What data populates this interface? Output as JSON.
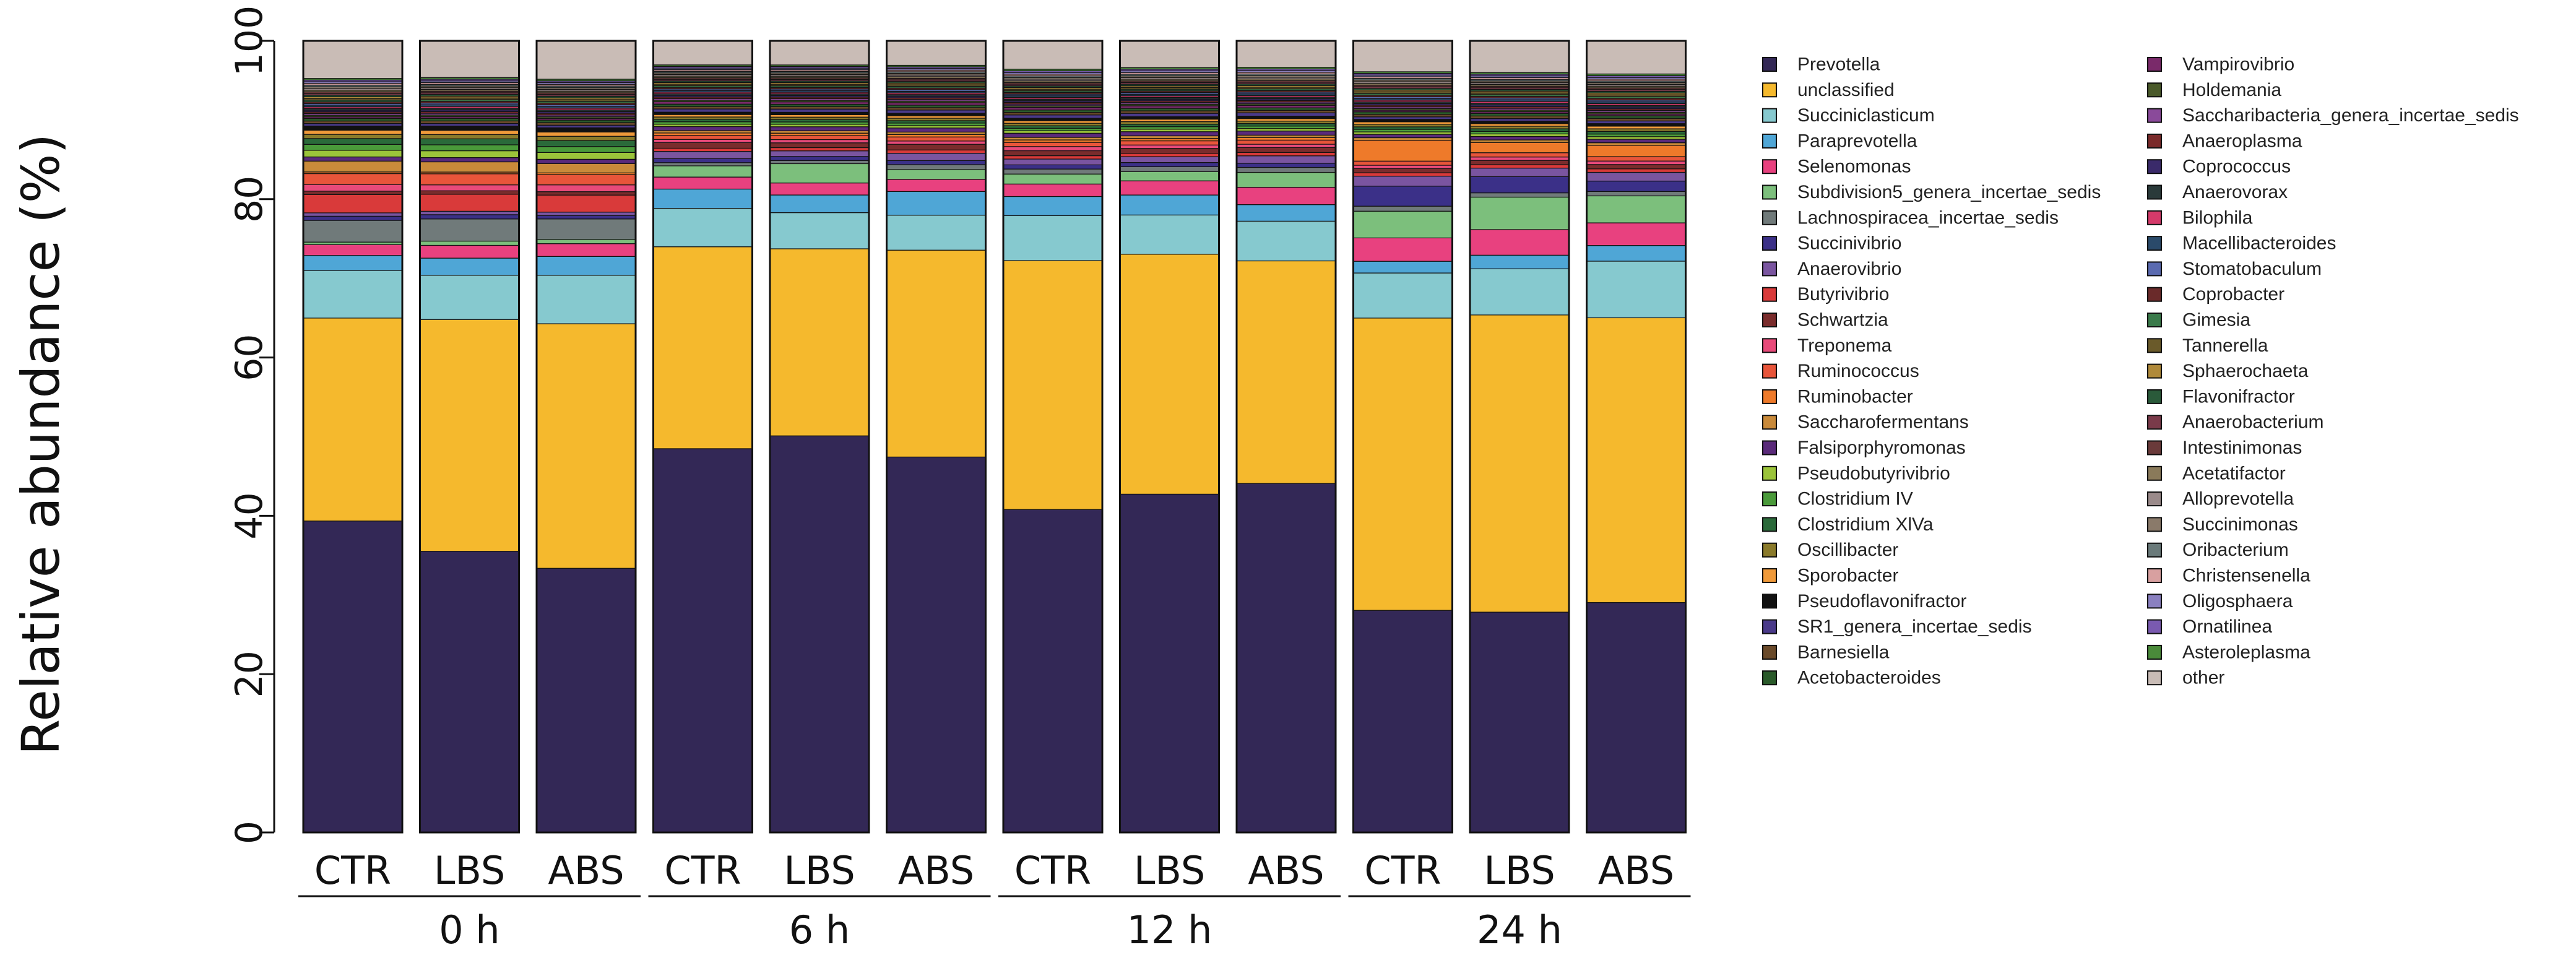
{
  "chart_data": {
    "type": "bar",
    "stacked": true,
    "title": "",
    "xlabel": "",
    "ylabel": "Relative abundance (%)",
    "ylim": [
      0,
      100
    ],
    "yticks": [
      "0",
      "20",
      "40",
      "60",
      "80",
      "100"
    ],
    "categories": [
      "CTR",
      "LBS",
      "ABS",
      "CTR",
      "LBS",
      "ABS",
      "CTR",
      "LBS",
      "ABS",
      "CTR",
      "LBS",
      "ABS"
    ],
    "groups": [
      {
        "label": "0 h",
        "span": [
          0,
          2
        ]
      },
      {
        "label": "6 h",
        "span": [
          3,
          5
        ]
      },
      {
        "label": "12 h",
        "span": [
          6,
          8
        ]
      },
      {
        "label": "24 h",
        "span": [
          9,
          11
        ]
      }
    ],
    "legend_position": "right",
    "series": [
      {
        "name": "Prevotella",
        "color": "#332856",
        "values": [
          37.3,
          33.0,
          31.0,
          47.9,
          49.4,
          46.1,
          38.8,
          40.6,
          42.2,
          26.6,
          25.8,
          26.4
        ]
      },
      {
        "name": "unclassified",
        "color": "#f5b92d",
        "values": [
          24.3,
          27.2,
          28.7,
          25.2,
          23.3,
          25.4,
          29.9,
          28.8,
          26.9,
          35.0,
          34.8,
          32.7
        ]
      },
      {
        "name": "Succiniclasticum",
        "color": "#86c9cf",
        "values": [
          5.7,
          5.2,
          5.7,
          4.8,
          4.5,
          4.3,
          5.4,
          4.7,
          4.8,
          5.4,
          5.4,
          6.5
        ]
      },
      {
        "name": "Paraprevotella",
        "color": "#4fa6d6",
        "values": [
          1.8,
          2.0,
          2.2,
          2.4,
          2.2,
          2.9,
          2.3,
          2.4,
          2.0,
          1.4,
          1.6,
          1.8
        ]
      },
      {
        "name": "Selenomonas",
        "color": "#e8417f",
        "values": [
          1.3,
          1.5,
          1.5,
          1.5,
          1.5,
          1.5,
          1.5,
          1.7,
          2.1,
          2.8,
          3.0,
          2.6
        ]
      },
      {
        "name": "Subdivision5_genera_incertae_sedis",
        "color": "#7cbf7c",
        "values": [
          0.3,
          0.5,
          0.5,
          1.4,
          2.4,
          1.2,
          1.2,
          1.1,
          1.8,
          3.2,
          3.8,
          3.1
        ]
      },
      {
        "name": "Lachnospiracea_incertae_sedis",
        "color": "#707a7a",
        "values": [
          2.6,
          2.6,
          2.4,
          0.4,
          0.4,
          0.6,
          0.6,
          0.6,
          0.6,
          0.6,
          0.5,
          0.5
        ]
      },
      {
        "name": "Succinivibrio",
        "color": "#3b3088",
        "values": [
          0.5,
          0.5,
          0.4,
          0.5,
          0.5,
          0.5,
          0.5,
          0.5,
          0.5,
          2.4,
          1.9,
          1.2
        ]
      },
      {
        "name": "Anaerovibrio",
        "color": "#7a55a0",
        "values": [
          0.4,
          0.4,
          0.4,
          0.9,
          0.7,
          0.9,
          0.7,
          0.7,
          0.9,
          1.2,
          1.0,
          1.0
        ]
      },
      {
        "name": "Butyrivibrio",
        "color": "#d93a3a",
        "values": [
          2.2,
          2.0,
          2.0,
          0.4,
          0.4,
          0.4,
          0.4,
          0.4,
          0.4,
          0.4,
          0.4,
          0.4
        ]
      },
      {
        "name": "Schwartzia",
        "color": "#7a2c2c",
        "values": [
          0.4,
          0.4,
          0.4,
          0.7,
          0.6,
          0.7,
          0.6,
          0.6,
          0.6,
          0.5,
          0.5,
          0.5
        ]
      },
      {
        "name": "Treponema",
        "color": "#e84a7a",
        "values": [
          0.8,
          0.7,
          0.8,
          0.4,
          0.4,
          0.4,
          0.5,
          0.4,
          0.4,
          0.4,
          0.4,
          0.4
        ]
      },
      {
        "name": "Ruminococcus",
        "color": "#e8553a",
        "values": [
          1.3,
          1.3,
          1.2,
          0.5,
          0.5,
          0.5,
          0.5,
          0.5,
          0.5,
          0.5,
          0.5,
          0.5
        ]
      },
      {
        "name": "Ruminobacter",
        "color": "#ee7a2a",
        "values": [
          0.2,
          0.2,
          0.2,
          0.3,
          0.3,
          0.3,
          0.3,
          0.3,
          0.3,
          2.5,
          1.2,
          1.3
        ]
      },
      {
        "name": "Saccharofermentans",
        "color": "#c98a3a",
        "values": [
          1.3,
          1.2,
          1.1,
          0.3,
          0.3,
          0.3,
          0.3,
          0.3,
          0.3,
          0.3,
          0.3,
          0.3
        ]
      },
      {
        "name": "Falsiporphyromonas",
        "color": "#5a2a7a",
        "values": [
          0.5,
          0.5,
          0.5,
          0.5,
          0.5,
          0.5,
          0.5,
          0.5,
          0.5,
          0.4,
          0.4,
          0.4
        ]
      },
      {
        "name": "Pseudobutyrivibrio",
        "color": "#9bc43a",
        "values": [
          0.8,
          0.8,
          0.8,
          0.3,
          0.3,
          0.3,
          0.3,
          0.3,
          0.3,
          0.3,
          0.3,
          0.3
        ]
      },
      {
        "name": "Clostridium IV",
        "color": "#4a9a3a",
        "values": [
          0.7,
          0.7,
          0.7,
          0.3,
          0.3,
          0.3,
          0.3,
          0.3,
          0.3,
          0.3,
          0.3,
          0.3
        ]
      },
      {
        "name": "Clostridium XlVa",
        "color": "#2a6a3a",
        "values": [
          0.7,
          0.7,
          0.7,
          0.3,
          0.3,
          0.3,
          0.3,
          0.3,
          0.3,
          0.3,
          0.3,
          0.3
        ]
      },
      {
        "name": "Oscillibacter",
        "color": "#8a7a2a",
        "values": [
          0.5,
          0.5,
          0.5,
          0.3,
          0.3,
          0.3,
          0.3,
          0.3,
          0.3,
          0.3,
          0.3,
          0.3
        ]
      },
      {
        "name": "Sporobacter",
        "color": "#f09a3a",
        "values": [
          0.5,
          0.5,
          0.5,
          0.3,
          0.3,
          0.3,
          0.3,
          0.3,
          0.3,
          0.3,
          0.3,
          0.3
        ]
      },
      {
        "name": "Pseudoflavonifractor",
        "color": "#111111",
        "values": [
          0.5,
          0.5,
          0.5,
          0.3,
          0.3,
          0.3,
          0.3,
          0.3,
          0.3,
          0.3,
          0.3,
          0.3
        ]
      },
      {
        "name": "SR1_genera_incertae_sedis",
        "color": "#4a3a8a",
        "values": [
          0.3,
          0.3,
          0.3,
          0.4,
          0.4,
          0.4,
          0.4,
          0.4,
          0.4,
          0.3,
          0.3,
          0.3
        ]
      },
      {
        "name": "Barnesiella",
        "color": "#6a4a2a",
        "values": [
          0.3,
          0.3,
          0.3,
          0.3,
          0.3,
          0.3,
          0.3,
          0.3,
          0.3,
          0.3,
          0.3,
          0.3
        ]
      },
      {
        "name": "Acetobacteroides",
        "color": "#2a5a2a",
        "values": [
          0.3,
          0.3,
          0.3,
          0.3,
          0.3,
          0.3,
          0.3,
          0.3,
          0.3,
          0.3,
          0.3,
          0.3
        ]
      },
      {
        "name": "Vampirovibrio",
        "color": "#7a2a6a",
        "values": [
          0.2,
          0.2,
          0.2,
          0.3,
          0.3,
          0.3,
          0.3,
          0.3,
          0.3,
          0.2,
          0.2,
          0.2
        ]
      },
      {
        "name": "Holdemania",
        "color": "#4a5a2a",
        "values": [
          0.2,
          0.2,
          0.2,
          0.2,
          0.2,
          0.2,
          0.2,
          0.2,
          0.2,
          0.2,
          0.2,
          0.2
        ]
      },
      {
        "name": "Saccharibacteria_genera_incertae_sedis",
        "color": "#8a4a9a",
        "values": [
          0.2,
          0.2,
          0.2,
          0.2,
          0.2,
          0.2,
          0.2,
          0.2,
          0.2,
          0.2,
          0.2,
          0.2
        ]
      },
      {
        "name": "Anaeroplasma",
        "color": "#7a2a2a",
        "values": [
          0.2,
          0.2,
          0.2,
          0.2,
          0.2,
          0.2,
          0.2,
          0.2,
          0.2,
          0.2,
          0.2,
          0.2
        ]
      },
      {
        "name": "Coprococcus",
        "color": "#3a2a6a",
        "values": [
          0.2,
          0.2,
          0.2,
          0.2,
          0.2,
          0.2,
          0.2,
          0.2,
          0.2,
          0.2,
          0.2,
          0.2
        ]
      },
      {
        "name": "Anaerovorax",
        "color": "#2a3a3a",
        "values": [
          0.2,
          0.2,
          0.2,
          0.2,
          0.2,
          0.2,
          0.2,
          0.2,
          0.2,
          0.2,
          0.2,
          0.2
        ]
      },
      {
        "name": "Bilophila",
        "color": "#d43a6a",
        "values": [
          0.2,
          0.2,
          0.2,
          0.2,
          0.2,
          0.2,
          0.2,
          0.2,
          0.2,
          0.2,
          0.2,
          0.2
        ]
      },
      {
        "name": "Macellibacteroides",
        "color": "#2a4a6a",
        "values": [
          0.2,
          0.2,
          0.2,
          0.2,
          0.2,
          0.2,
          0.2,
          0.2,
          0.2,
          0.2,
          0.2,
          0.2
        ]
      },
      {
        "name": "Stomatobaculum",
        "color": "#5a6ab0",
        "values": [
          0.2,
          0.2,
          0.2,
          0.2,
          0.2,
          0.2,
          0.2,
          0.2,
          0.2,
          0.2,
          0.2,
          0.2
        ]
      },
      {
        "name": "Coprobacter",
        "color": "#6a2a2a",
        "values": [
          0.2,
          0.2,
          0.2,
          0.2,
          0.2,
          0.2,
          0.2,
          0.2,
          0.2,
          0.2,
          0.2,
          0.2
        ]
      },
      {
        "name": "Gimesia",
        "color": "#3a7a4a",
        "values": [
          0.2,
          0.2,
          0.2,
          0.2,
          0.2,
          0.2,
          0.2,
          0.2,
          0.2,
          0.2,
          0.2,
          0.2
        ]
      },
      {
        "name": "Tannerella",
        "color": "#6a5a2a",
        "values": [
          0.2,
          0.2,
          0.2,
          0.2,
          0.2,
          0.2,
          0.2,
          0.2,
          0.2,
          0.2,
          0.2,
          0.2
        ]
      },
      {
        "name": "Sphaerochaeta",
        "color": "#b08a3a",
        "values": [
          0.2,
          0.2,
          0.2,
          0.2,
          0.2,
          0.2,
          0.2,
          0.2,
          0.2,
          0.2,
          0.2,
          0.2
        ]
      },
      {
        "name": "Flavonifractor",
        "color": "#2a5a3a",
        "values": [
          0.2,
          0.2,
          0.2,
          0.2,
          0.2,
          0.2,
          0.2,
          0.2,
          0.2,
          0.2,
          0.2,
          0.2
        ]
      },
      {
        "name": "Anaerobacterium",
        "color": "#7a3a4a",
        "values": [
          0.2,
          0.2,
          0.2,
          0.2,
          0.2,
          0.2,
          0.2,
          0.2,
          0.2,
          0.2,
          0.2,
          0.2
        ]
      },
      {
        "name": "Intestinimonas",
        "color": "#6a3a3a",
        "values": [
          0.2,
          0.2,
          0.2,
          0.2,
          0.2,
          0.2,
          0.2,
          0.2,
          0.2,
          0.2,
          0.2,
          0.2
        ]
      },
      {
        "name": "Acetatifactor",
        "color": "#8a7a5a",
        "values": [
          0.2,
          0.2,
          0.2,
          0.2,
          0.2,
          0.2,
          0.2,
          0.2,
          0.2,
          0.2,
          0.2,
          0.2
        ]
      },
      {
        "name": "Alloprevotella",
        "color": "#9a8a8a",
        "values": [
          0.2,
          0.2,
          0.2,
          0.2,
          0.2,
          0.2,
          0.2,
          0.2,
          0.2,
          0.2,
          0.2,
          0.2
        ]
      },
      {
        "name": "Succinimonas",
        "color": "#8a7a6a",
        "values": [
          0.2,
          0.2,
          0.2,
          0.2,
          0.2,
          0.2,
          0.2,
          0.2,
          0.2,
          0.2,
          0.2,
          0.2
        ]
      },
      {
        "name": "Oribacterium",
        "color": "#6a7a7a",
        "values": [
          0.2,
          0.2,
          0.2,
          0.2,
          0.2,
          0.2,
          0.2,
          0.2,
          0.2,
          0.2,
          0.2,
          0.2
        ]
      },
      {
        "name": "Christensenella",
        "color": "#d8a0a0",
        "values": [
          0.2,
          0.2,
          0.2,
          0.2,
          0.2,
          0.2,
          0.2,
          0.2,
          0.2,
          0.2,
          0.2,
          0.2
        ]
      },
      {
        "name": "Oligosphaera",
        "color": "#8a80c0",
        "values": [
          0.2,
          0.2,
          0.2,
          0.2,
          0.2,
          0.2,
          0.2,
          0.2,
          0.2,
          0.2,
          0.2,
          0.2
        ]
      },
      {
        "name": "Ornatilinea",
        "color": "#7a5ab0",
        "values": [
          0.2,
          0.2,
          0.2,
          0.2,
          0.2,
          0.2,
          0.2,
          0.2,
          0.2,
          0.2,
          0.2,
          0.2
        ]
      },
      {
        "name": "Asteroleplasma",
        "color": "#4a8a3a",
        "values": [
          0.2,
          0.2,
          0.2,
          0.2,
          0.2,
          0.2,
          0.2,
          0.2,
          0.2,
          0.2,
          0.2,
          0.2
        ]
      },
      {
        "name": "other",
        "color": "#c9bcb6",
        "values": [
          4.5,
          4.3,
          4.5,
          3.0,
          3.0,
          3.0,
          3.4,
          3.2,
          3.2,
          3.7,
          3.7,
          3.8
        ]
      }
    ]
  }
}
